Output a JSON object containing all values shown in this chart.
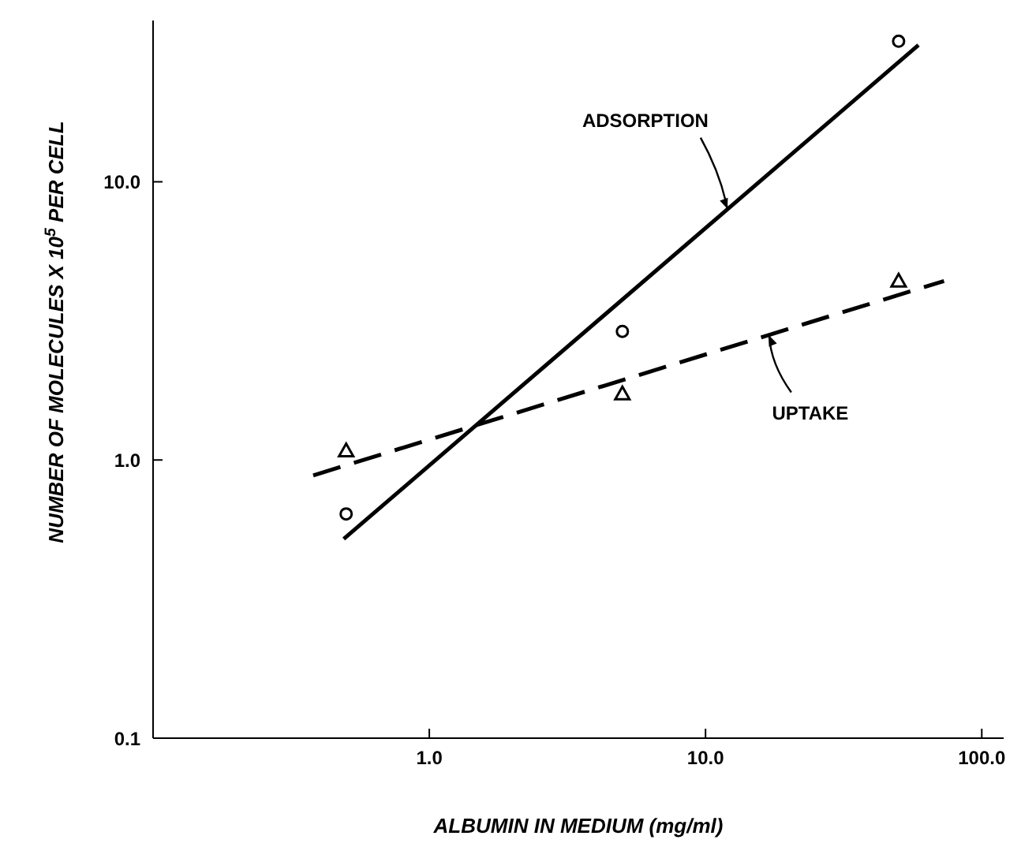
{
  "chart_data": {
    "type": "scatter",
    "xlabel": "ALBUMIN IN MEDIUM (mg/ml)",
    "ylabel": "NUMBER OF MOLECULES X 10$^{5}$ PER CELL",
    "log": "xy",
    "grid": false,
    "legend": false,
    "xlim": [
      0.1,
      120
    ],
    "xticks": [
      {
        "value": 1,
        "label": "1.0"
      },
      {
        "value": 10,
        "label": "10.0"
      },
      {
        "value": 100,
        "label": "100.0"
      }
    ],
    "ylim": [
      0.1,
      38
    ],
    "yticks": [
      {
        "value": 0.1,
        "label": "0.1"
      },
      {
        "value": 1,
        "label": "1.0"
      },
      {
        "value": 10,
        "label": "10.0"
      }
    ],
    "series": [
      {
        "color": "#000000",
        "marker": "circle",
        "x": [
          0.5,
          5,
          50
        ],
        "values": [
          0.64,
          2.9,
          32
        ]
      },
      {
        "color": "#000000",
        "marker": "triangle",
        "x": [
          0.5,
          5,
          50
        ],
        "values": [
          1.08,
          1.73,
          4.4
        ]
      },
      {
        "type": "line",
        "color": "#000000",
        "marker": "none",
        "line_style": "solid",
        "x": [
          0.49,
          59
        ],
        "values": [
          0.52,
          31
        ]
      },
      {
        "type": "line",
        "color": "#000000",
        "marker": "none",
        "line_style": "dashed",
        "x": [
          0.38,
          73
        ],
        "values": [
          0.88,
          4.4
        ]
      }
    ],
    "annotations": [
      {
        "text": "ADSORPTION",
        "x": 12,
        "y": 8.0
      },
      {
        "text": "UPTAKE",
        "x": 17,
        "y": 2.8
      }
    ]
  }
}
